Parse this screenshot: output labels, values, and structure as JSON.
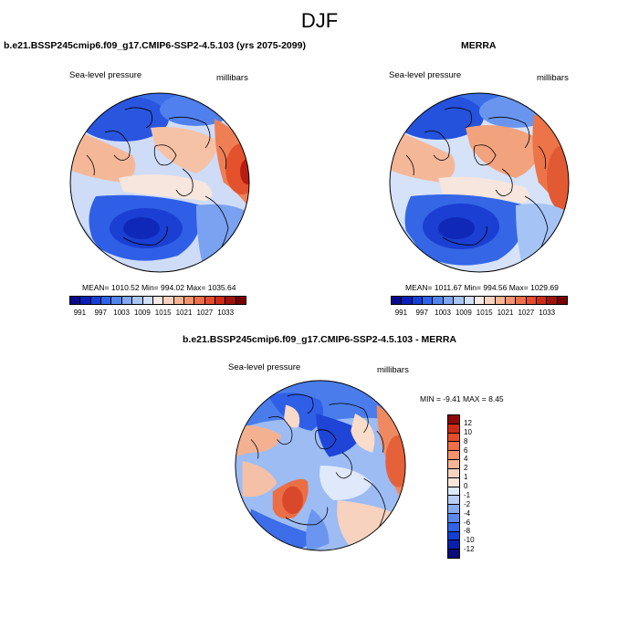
{
  "figure": {
    "title": "DJF"
  },
  "panels": {
    "model": {
      "title": "b.e21.BSSP245cmip6.f09_g17.CMIP6-SSP2-4.5.103 (yrs 2075-2099)",
      "variable": "Sea-level pressure",
      "units": "millibars",
      "stats": "MEAN= 1010.52  Min= 994.02  Max= 1035.64"
    },
    "obs": {
      "title": "MERRA",
      "variable": "Sea-level pressure",
      "units": "millibars",
      "stats": "MEAN= 1011.67  Min= 994.56  Max= 1029.69"
    },
    "diff": {
      "title": "b.e21.BSSP245cmip6.f09_g17.CMIP6-SSP2-4.5.103 - MERRA",
      "variable": "Sea-level pressure",
      "units": "millibars",
      "stats": "MIN =  -9.41 MAX =   8.45"
    }
  },
  "colorbars": {
    "abs": {
      "labels": [
        "991",
        "997",
        "1003",
        "1009",
        "1015",
        "1021",
        "1027",
        "1033"
      ],
      "colors": [
        "#0a0a8c",
        "#0b1fb8",
        "#1540d8",
        "#2d62ea",
        "#5284ef",
        "#7fa7f2",
        "#a9c5f6",
        "#d0e0fa",
        "#f7eae2",
        "#f9d2bf",
        "#f7b596",
        "#f3926d",
        "#ee6f49",
        "#e44c2b",
        "#cf2c17",
        "#a0120c",
        "#7a0000"
      ]
    },
    "diff": {
      "labels": [
        "12",
        "10",
        "8",
        "6",
        "4",
        "2",
        "1",
        "0",
        "-1",
        "-2",
        "-4",
        "-6",
        "-8",
        "-10",
        "-12"
      ],
      "colors": [
        "#8c0a0a",
        "#cf2c17",
        "#e44c2b",
        "#ee6f49",
        "#f3926d",
        "#f7b596",
        "#f9d2bf",
        "#fbe6dc",
        "#dde9fb",
        "#b6cdf6",
        "#86aaf1",
        "#5a88ec",
        "#2f62e6",
        "#143fd4",
        "#0a1fae",
        "#0a0a7a"
      ]
    }
  }
}
